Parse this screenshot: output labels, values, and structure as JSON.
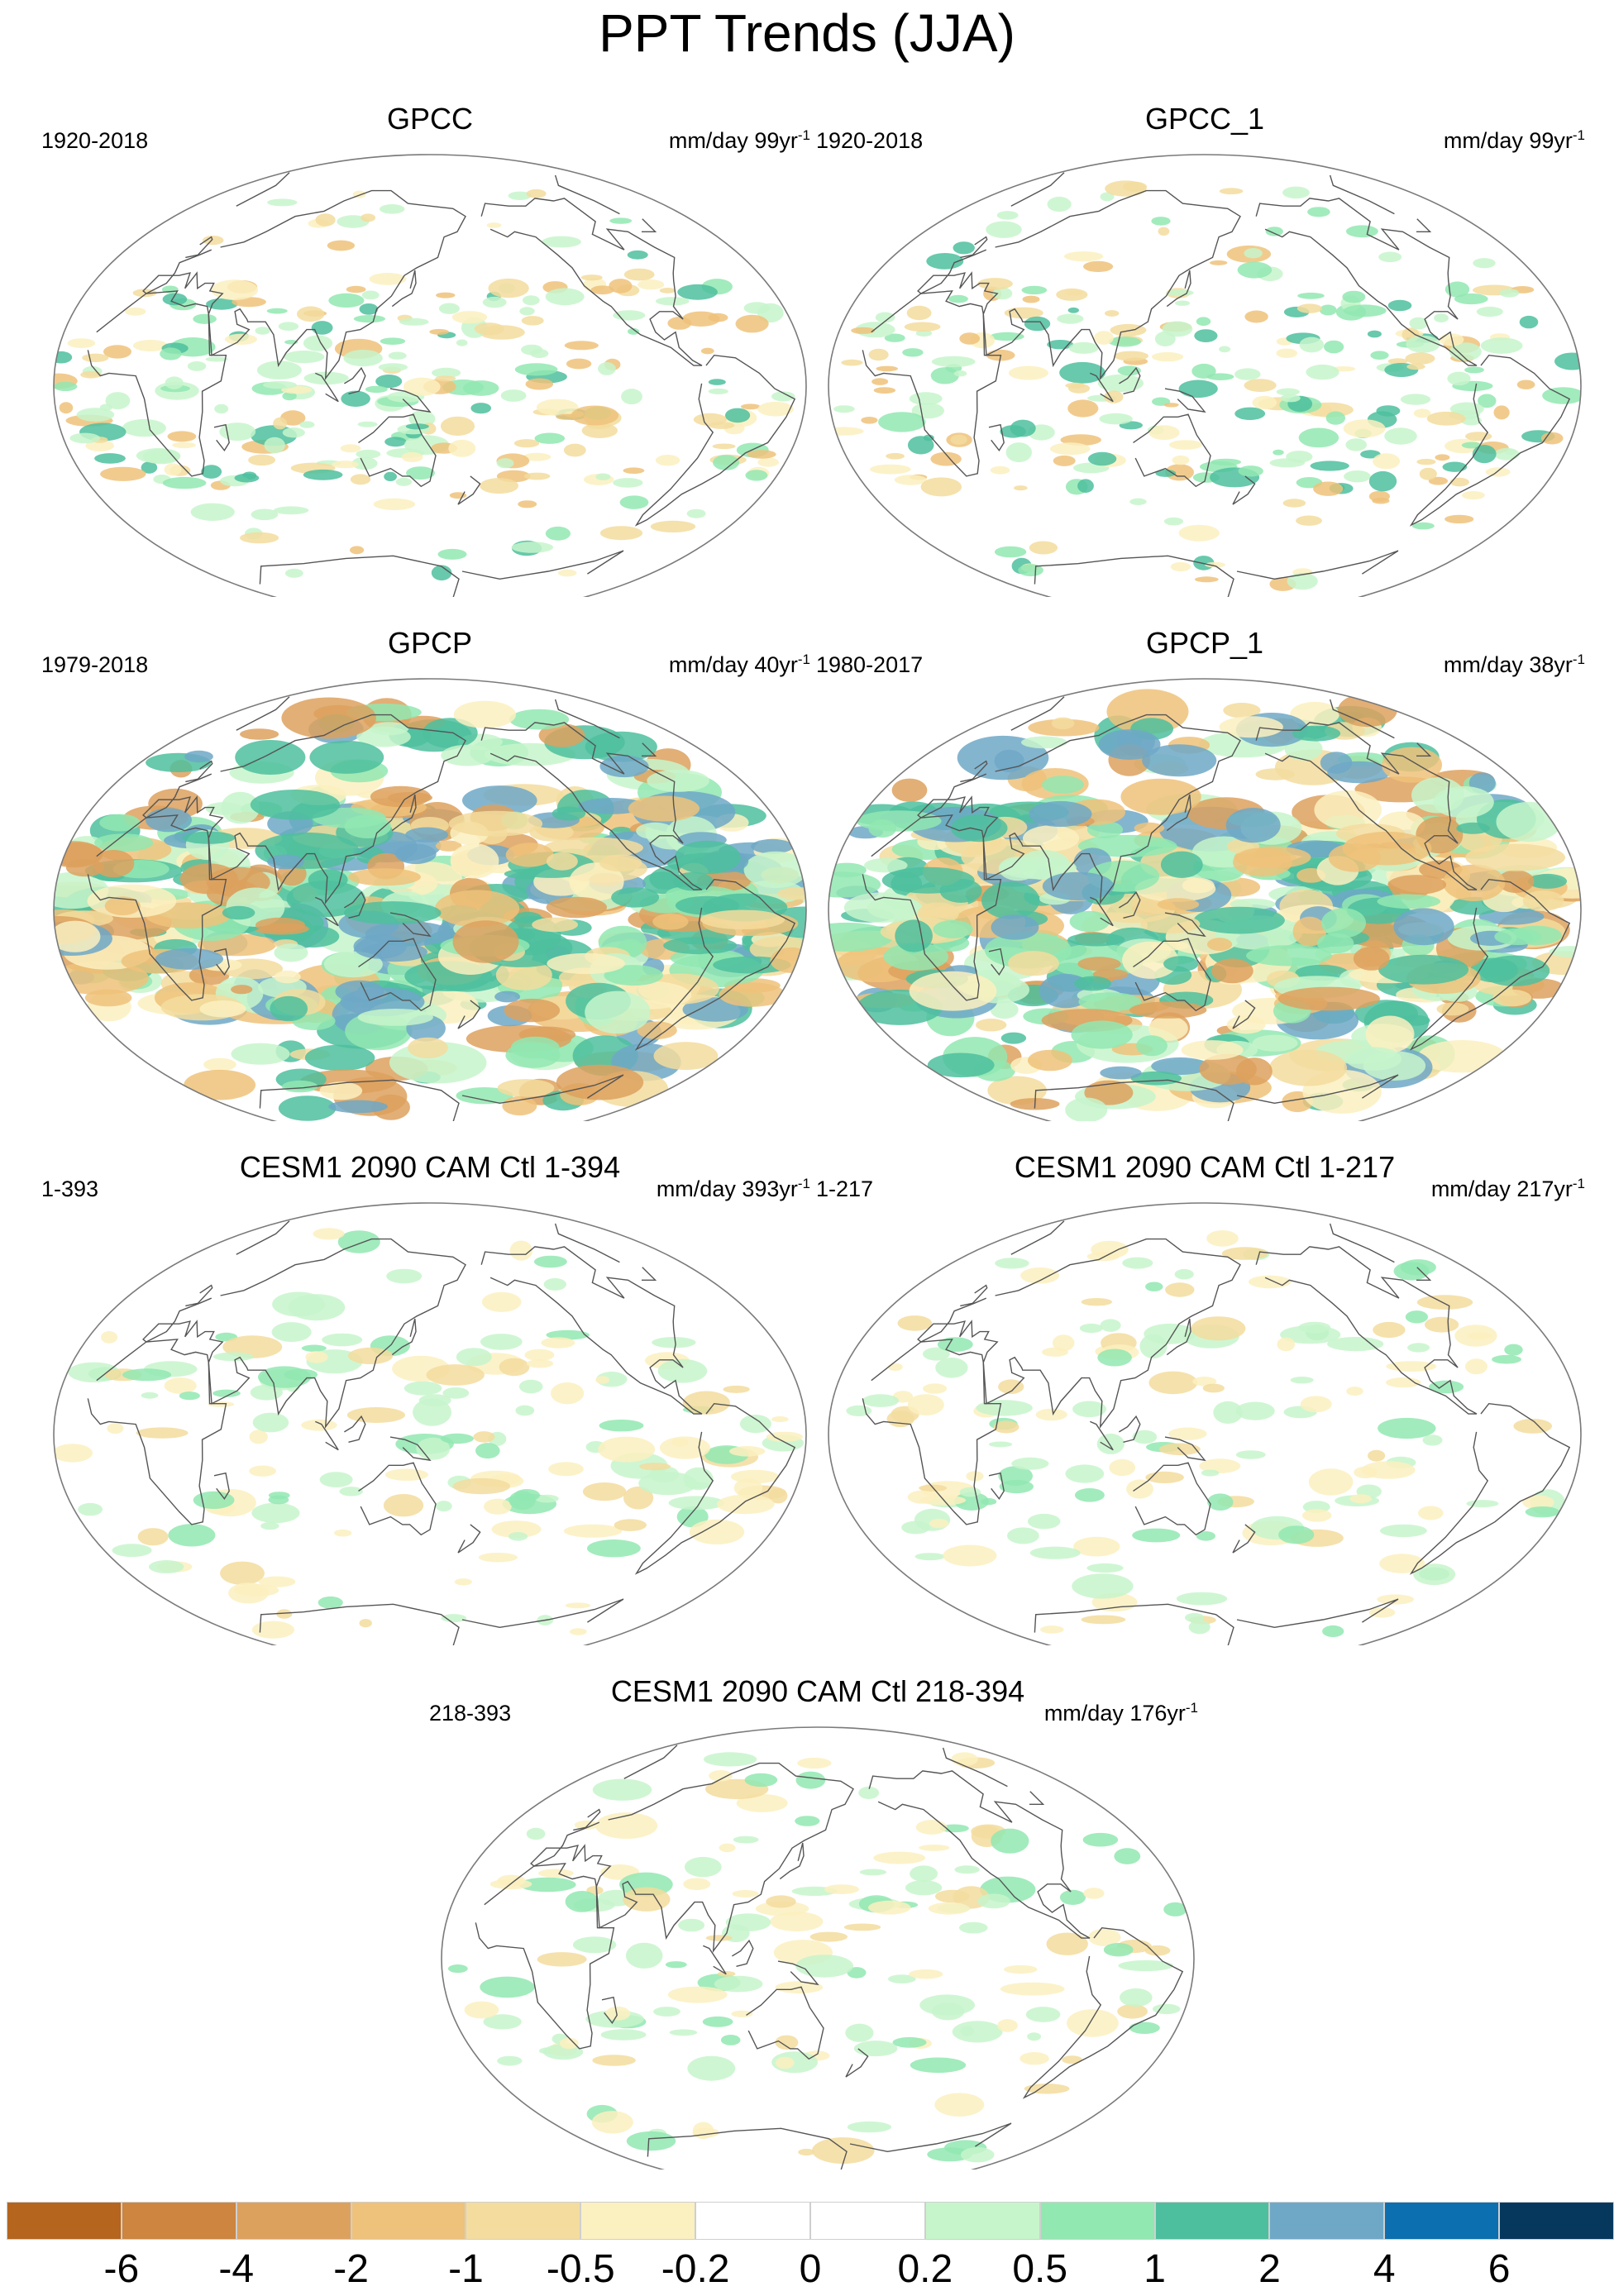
{
  "title": "PPT Trends (JJA)",
  "panels": [
    {
      "title": "GPCC",
      "period": "1920-2018",
      "unit": "mm/day 99yr",
      "unit_sup": "-1",
      "pattern": "land"
    },
    {
      "title": "GPCC_1",
      "period": "1920-2018",
      "unit": "mm/day 99yr",
      "unit_sup": "-1",
      "pattern": "land"
    },
    {
      "title": "GPCP",
      "period": "1979-2018",
      "unit": "mm/day 40yr",
      "unit_sup": "-1",
      "pattern": "strong"
    },
    {
      "title": "GPCP_1",
      "period": "1980-2017",
      "unit": "mm/day 38yr",
      "unit_sup": "-1",
      "pattern": "strong"
    },
    {
      "title": "CESM1 2090 CAM Ctl 1-394",
      "period": "1-393",
      "unit": "mm/day 393yr",
      "unit_sup": "-1",
      "pattern": "weak"
    },
    {
      "title": "CESM1 2090 CAM Ctl 1-217",
      "period": "1-217",
      "unit": "mm/day 217yr",
      "unit_sup": "-1",
      "pattern": "weak"
    },
    {
      "title": "CESM1 2090 CAM Ctl 218-394",
      "period": "218-393",
      "unit": "mm/day 176yr",
      "unit_sup": "-1",
      "pattern": "weak"
    }
  ],
  "colorbar": {
    "colors": [
      "#b5651d",
      "#cd853f",
      "#dda15e",
      "#eec27a",
      "#f3dc9e",
      "#fbf0c0",
      "#ffffff",
      "#ffffff",
      "#c7f5cb",
      "#92e8b1",
      "#4dbf9e",
      "#6fa8c7",
      "#0b6fb0",
      "#06385e"
    ],
    "labels": [
      "-6",
      "-4",
      "-2",
      "-1",
      "-0.5",
      "-0.2",
      "0",
      "0.2",
      "0.5",
      "1",
      "2",
      "4",
      "6"
    ]
  }
}
